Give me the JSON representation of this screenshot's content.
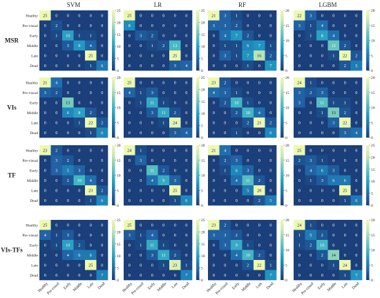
{
  "figure": {
    "models": [
      "SVM",
      "LR",
      "RF",
      "LGBM"
    ],
    "feature_sets": [
      "MSR",
      "VIs",
      "TF",
      "VIs-TFs"
    ],
    "class_labels": [
      "Healthy",
      "Pre-visual",
      "Early",
      "Middle",
      "Late",
      "Dead"
    ],
    "colormap": [
      "#1a3f7a",
      "#2166a8",
      "#1d91c0",
      "#41b6c4",
      "#7fcdbb",
      "#c7e9b4",
      "#edf8b1"
    ]
  },
  "chart_data": {
    "type": "heatmap",
    "row_labels": [
      "Healthy",
      "Pre-visual",
      "Early",
      "Middle",
      "Late",
      "Dead"
    ],
    "col_labels": [
      "Healthy",
      "Pre-visual",
      "Early",
      "Middle",
      "Late",
      "Dead"
    ],
    "panels": [
      {
        "row": "MSR",
        "col": "SVM",
        "vmax": 25,
        "ticks": [
          0,
          5,
          10,
          15,
          20,
          25
        ],
        "matrix": [
          [
            25,
            0,
            0,
            0,
            0,
            0
          ],
          [
            0,
            2,
            0,
            0,
            0,
            0
          ],
          [
            0,
            1,
            10,
            1,
            1,
            0
          ],
          [
            0,
            0,
            3,
            9,
            4,
            0
          ],
          [
            0,
            0,
            0,
            0,
            25,
            0
          ],
          [
            0,
            0,
            0,
            0,
            1,
            6
          ]
        ]
      },
      {
        "row": "MSR",
        "col": "LR",
        "vmax": 25,
        "ticks": [
          0,
          5,
          10,
          15,
          20,
          25
        ],
        "matrix": [
          [
            25,
            0,
            0,
            0,
            0,
            0
          ],
          [
            8,
            0,
            0,
            0,
            0,
            0
          ],
          [
            0,
            3,
            2,
            0,
            0,
            0
          ],
          [
            0,
            0,
            1,
            2,
            13,
            0
          ],
          [
            0,
            0,
            0,
            0,
            25,
            0
          ],
          [
            0,
            0,
            0,
            0,
            3,
            4
          ]
        ]
      },
      {
        "row": "MSR",
        "col": "RF",
        "vmax": 20,
        "ticks": [
          0,
          5,
          10,
          15,
          20
        ],
        "matrix": [
          [
            21,
            3,
            1,
            0,
            0,
            0
          ],
          [
            3,
            3,
            2,
            0,
            0,
            0
          ],
          [
            0,
            4,
            7,
            2,
            0,
            0
          ],
          [
            0,
            1,
            1,
            6,
            7,
            1
          ],
          [
            0,
            3,
            1,
            7,
            16,
            2
          ],
          [
            0,
            0,
            0,
            1,
            0,
            7
          ]
        ]
      },
      {
        "row": "MSR",
        "col": "LGBM",
        "vmax": 20,
        "ticks": [
          0,
          5,
          10,
          15,
          20
        ],
        "matrix": [
          [
            22,
            3,
            0,
            0,
            0,
            0
          ],
          [
            3,
            1,
            4,
            0,
            0,
            0
          ],
          [
            0,
            1,
            8,
            4,
            0,
            0
          ],
          [
            0,
            0,
            0,
            12,
            2,
            0
          ],
          [
            0,
            0,
            0,
            1,
            22,
            2
          ],
          [
            0,
            0,
            0,
            0,
            2,
            5
          ]
        ]
      },
      {
        "row": "VIs",
        "col": "SVM",
        "vmax": 20,
        "ticks": [
          0,
          5,
          10,
          15,
          20
        ],
        "matrix": [
          [
            21,
            4,
            0,
            0,
            0,
            0
          ],
          [
            3,
            2,
            0,
            0,
            0,
            0
          ],
          [
            0,
            0,
            13,
            0,
            0,
            0
          ],
          [
            0,
            0,
            6,
            8,
            2,
            0
          ],
          [
            0,
            0,
            0,
            1,
            22,
            2
          ],
          [
            0,
            0,
            0,
            0,
            1,
            6
          ]
        ]
      },
      {
        "row": "VIs",
        "col": "LR",
        "vmax": 25,
        "ticks": [
          0,
          5,
          10,
          15,
          20,
          25
        ],
        "matrix": [
          [
            25,
            0,
            0,
            0,
            0,
            0
          ],
          [
            4,
            1,
            3,
            0,
            0,
            0
          ],
          [
            0,
            1,
            11,
            1,
            0,
            0
          ],
          [
            0,
            0,
            3,
            11,
            2,
            0
          ],
          [
            0,
            0,
            0,
            1,
            24,
            0
          ],
          [
            0,
            0,
            0,
            0,
            3,
            4
          ]
        ]
      },
      {
        "row": "VIs",
        "col": "RF",
        "vmax": 20,
        "ticks": [
          0,
          5,
          10,
          15,
          20
        ],
        "matrix": [
          [
            23,
            2,
            0,
            0,
            0,
            0
          ],
          [
            4,
            3,
            1,
            0,
            0,
            0
          ],
          [
            0,
            2,
            10,
            1,
            0,
            0
          ],
          [
            0,
            0,
            2,
            10,
            4,
            0
          ],
          [
            0,
            0,
            0,
            2,
            21,
            2
          ],
          [
            0,
            0,
            1,
            0,
            0,
            6
          ]
        ]
      },
      {
        "row": "VIs",
        "col": "LGBM",
        "vmax": 20,
        "ticks": [
          0,
          5,
          10,
          15,
          20
        ],
        "matrix": [
          [
            24,
            1,
            0,
            0,
            0,
            0
          ],
          [
            3,
            2,
            3,
            0,
            0,
            0
          ],
          [
            3,
            0,
            11,
            1,
            1,
            0
          ],
          [
            0,
            0,
            1,
            13,
            2,
            0
          ],
          [
            0,
            0,
            0,
            3,
            22,
            0
          ],
          [
            0,
            0,
            0,
            0,
            3,
            4
          ]
        ]
      },
      {
        "row": "TF",
        "col": "SVM",
        "vmax": 20,
        "ticks": [
          0,
          5,
          10,
          15,
          20
        ],
        "matrix": [
          [
            23,
            2,
            0,
            0,
            0,
            0
          ],
          [
            0,
            3,
            2,
            0,
            0,
            0
          ],
          [
            0,
            3,
            5,
            3,
            0,
            0
          ],
          [
            0,
            0,
            2,
            10,
            4,
            0
          ],
          [
            0,
            0,
            0,
            0,
            23,
            2
          ],
          [
            0,
            0,
            0,
            0,
            1,
            6
          ]
        ]
      },
      {
        "row": "TF",
        "col": "LR",
        "vmax": 20,
        "ticks": [
          0,
          5,
          10,
          15,
          20
        ],
        "matrix": [
          [
            24,
            1,
            0,
            0,
            0,
            0
          ],
          [
            0,
            3,
            0,
            0,
            0,
            0
          ],
          [
            0,
            0,
            11,
            2,
            0,
            0
          ],
          [
            0,
            0,
            4,
            9,
            3,
            0
          ],
          [
            0,
            0,
            0,
            0,
            25,
            0
          ],
          [
            0,
            0,
            0,
            0,
            1,
            6
          ]
        ]
      },
      {
        "row": "TF",
        "col": "RF",
        "vmax": 20,
        "ticks": [
          0,
          5,
          10,
          15,
          20
        ],
        "matrix": [
          [
            21,
            4,
            0,
            0,
            0,
            0
          ],
          [
            0,
            2,
            3,
            0,
            0,
            0
          ],
          [
            0,
            1,
            6,
            3,
            0,
            0
          ],
          [
            0,
            0,
            4,
            11,
            2,
            0
          ],
          [
            0,
            0,
            0,
            5,
            20,
            0
          ],
          [
            0,
            0,
            0,
            0,
            2,
            5
          ]
        ]
      },
      {
        "row": "TF",
        "col": "LGBM",
        "vmax": 25,
        "ticks": [
          0,
          5,
          10,
          15,
          20,
          25
        ],
        "matrix": [
          [
            25,
            0,
            0,
            0,
            0,
            0
          ],
          [
            2,
            3,
            1,
            0,
            0,
            0
          ],
          [
            0,
            4,
            6,
            3,
            0,
            0
          ],
          [
            0,
            1,
            3,
            6,
            6,
            0
          ],
          [
            0,
            0,
            0,
            0,
            25,
            0
          ],
          [
            0,
            0,
            0,
            0,
            1,
            6
          ]
        ]
      },
      {
        "row": "VIs-TFs",
        "col": "SVM",
        "vmax": 25,
        "ticks": [
          0,
          5,
          10,
          15,
          20,
          25
        ],
        "matrix": [
          [
            25,
            0,
            0,
            0,
            0,
            0
          ],
          [
            4,
            1,
            3,
            0,
            0,
            0
          ],
          [
            0,
            1,
            10,
            2,
            0,
            0
          ],
          [
            0,
            0,
            4,
            6,
            6,
            0
          ],
          [
            0,
            0,
            0,
            0,
            25,
            0
          ],
          [
            0,
            0,
            0,
            0,
            0,
            7
          ]
        ]
      },
      {
        "row": "VIs-TFs",
        "col": "LR",
        "vmax": 25,
        "ticks": [
          0,
          5,
          10,
          15,
          20,
          25
        ],
        "matrix": [
          [
            25,
            0,
            0,
            0,
            0,
            0
          ],
          [
            3,
            1,
            4,
            0,
            0,
            0
          ],
          [
            0,
            1,
            11,
            1,
            0,
            0
          ],
          [
            0,
            0,
            3,
            11,
            2,
            0
          ],
          [
            0,
            0,
            0,
            1,
            23,
            1
          ],
          [
            0,
            0,
            0,
            0,
            0,
            7
          ]
        ]
      },
      {
        "row": "VIs-TFs",
        "col": "RF",
        "vmax": 20,
        "ticks": [
          0,
          5,
          10,
          15,
          20
        ],
        "matrix": [
          [
            23,
            2,
            0,
            0,
            0,
            0
          ],
          [
            3,
            3,
            2,
            0,
            0,
            0
          ],
          [
            0,
            3,
            9,
            1,
            0,
            0
          ],
          [
            0,
            0,
            4,
            10,
            2,
            0
          ],
          [
            0,
            0,
            0,
            2,
            22,
            1
          ],
          [
            0,
            0,
            0,
            0,
            0,
            7
          ]
        ]
      },
      {
        "row": "VIs-TFs",
        "col": "LGBM",
        "vmax": 20,
        "ticks": [
          0,
          5,
          10,
          15,
          20
        ],
        "matrix": [
          [
            24,
            1,
            0,
            0,
            0,
            0
          ],
          [
            1,
            5,
            2,
            0,
            0,
            0
          ],
          [
            1,
            2,
            10,
            0,
            0,
            0
          ],
          [
            0,
            0,
            2,
            14,
            0,
            0
          ],
          [
            0,
            0,
            0,
            1,
            24,
            0
          ],
          [
            0,
            0,
            0,
            0,
            1,
            7
          ]
        ]
      }
    ]
  }
}
